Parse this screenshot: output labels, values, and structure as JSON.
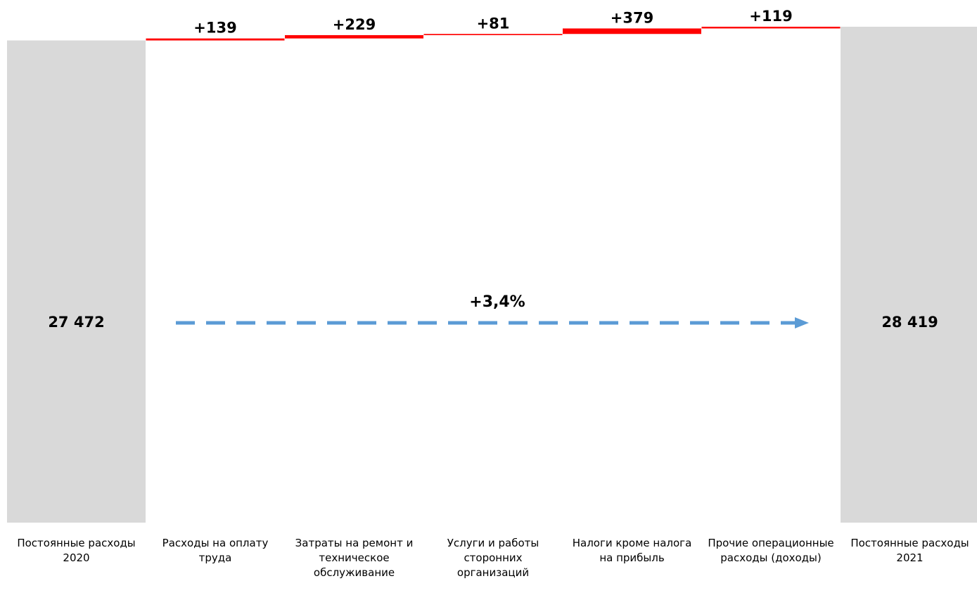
{
  "chart_data": {
    "type": "waterfall",
    "categories": [
      "Постоянные расходы 2020",
      "Расходы на оплату труда",
      "Затраты на ремонт и техническое обслуживание",
      "Услуги и работы сторонних организаций",
      "Налоги кроме налога на прибыль",
      "Прочие операционные расходы (доходы)",
      "Постоянные расходы 2021"
    ],
    "values": [
      27472,
      139,
      229,
      81,
      379,
      119,
      28419
    ],
    "data_labels": [
      "27 472",
      "+139",
      "+229",
      "+81",
      "+379",
      "+119",
      "28 419"
    ],
    "kinds": [
      "total",
      "increase",
      "increase",
      "increase",
      "increase",
      "increase",
      "total"
    ],
    "annotation": "+3,4%",
    "colors": {
      "total": "#d9d9d9",
      "increase": "#ff0000",
      "arrow": "#5b9bd5"
    }
  }
}
